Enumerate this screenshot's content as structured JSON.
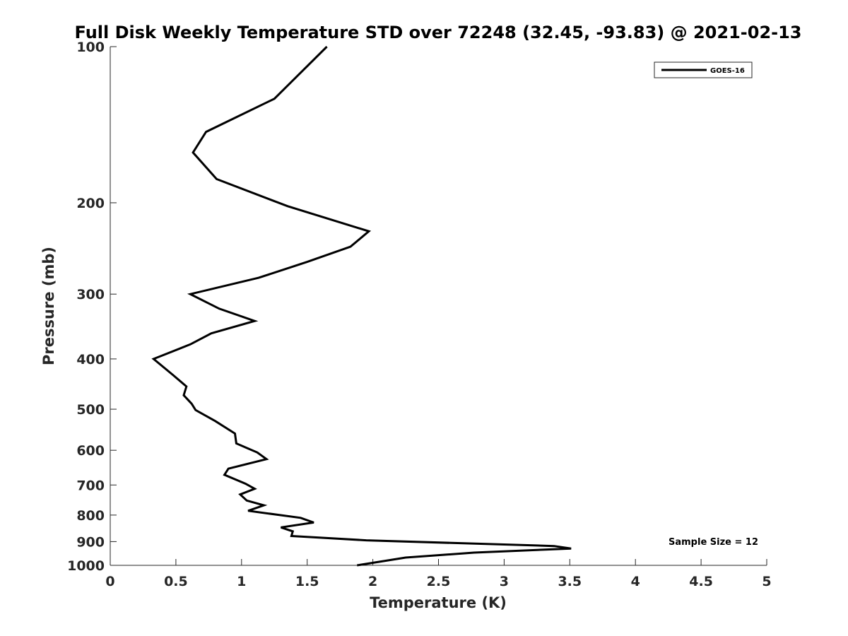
{
  "chart_data": {
    "type": "line",
    "title": "Full Disk Weekly Temperature STD over 72248 (32.45, -93.83) @ 2021-02-13",
    "xlabel": "Temperature (K)",
    "ylabel": "Pressure (mb)",
    "xlim": [
      0,
      5
    ],
    "ylim": [
      1000,
      100
    ],
    "yscale": "log",
    "y_reversed": true,
    "x_ticks": [
      0,
      0.5,
      1,
      1.5,
      2,
      2.5,
      3,
      3.5,
      4,
      4.5,
      5
    ],
    "x_tick_labels": [
      "0",
      "0.5",
      "1",
      "1.5",
      "2",
      "2.5",
      "3",
      "3.5",
      "4",
      "4.5",
      "5"
    ],
    "y_ticks": [
      100,
      200,
      300,
      400,
      500,
      600,
      700,
      800,
      900,
      1000
    ],
    "y_tick_labels": [
      "100",
      "200",
      "300",
      "400",
      "500",
      "600",
      "700",
      "800",
      "900",
      "1000"
    ],
    "grid": false,
    "legend": {
      "position": "top-right",
      "entries": [
        "GOES-16"
      ]
    },
    "annotation": "Sample Size = 12",
    "series": [
      {
        "name": "GOES-16",
        "color": "#000000",
        "x": [
          1.65,
          1.25,
          0.73,
          0.63,
          0.81,
          1.35,
          1.97,
          1.83,
          1.5,
          1.13,
          0.61,
          0.83,
          1.1,
          0.77,
          0.61,
          0.33,
          0.48,
          0.58,
          0.56,
          0.62,
          0.65,
          0.8,
          0.95,
          0.96,
          1.12,
          1.19,
          0.9,
          0.87,
          1.03,
          1.1,
          0.99,
          1.04,
          1.17,
          1.05,
          1.45,
          1.55,
          1.3,
          1.39,
          1.38,
          1.95,
          3.38,
          3.51,
          2.77,
          2.25,
          1.88
        ],
        "y": [
          100,
          126,
          146,
          160,
          180,
          203,
          227,
          243,
          260,
          279,
          300,
          320,
          338,
          357,
          375,
          400,
          430,
          452,
          470,
          488,
          502,
          527,
          557,
          582,
          606,
          624,
          651,
          669,
          696,
          712,
          730,
          750,
          766,
          785,
          810,
          827,
          845,
          860,
          878,
          895,
          918,
          928,
          945,
          966,
          1000
        ]
      }
    ]
  }
}
